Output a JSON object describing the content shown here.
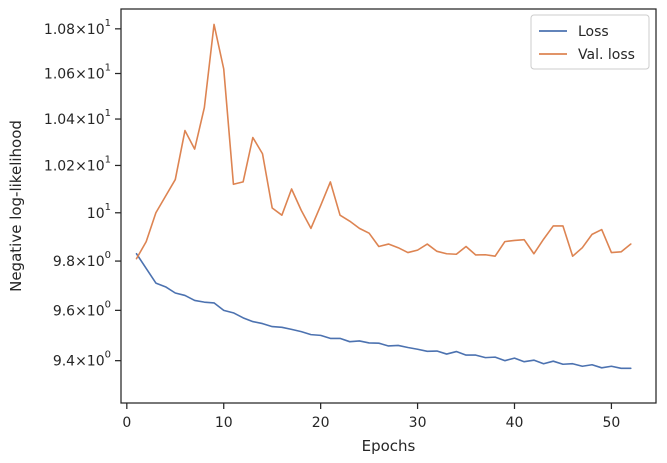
{
  "chart_data": {
    "type": "line",
    "xlabel": "Epochs",
    "ylabel": "Negative log-likelihood",
    "xlim": [
      -0.6,
      54.6
    ],
    "ylim": [
      9.235,
      10.89
    ],
    "yscale": "log",
    "grid": false,
    "legend_position": "top-right",
    "xticks": [
      {
        "value": 0,
        "label": "0"
      },
      {
        "value": 10,
        "label": "10"
      },
      {
        "value": 20,
        "label": "20"
      },
      {
        "value": 30,
        "label": "30"
      },
      {
        "value": 40,
        "label": "40"
      },
      {
        "value": 50,
        "label": "50"
      }
    ],
    "yticks": [
      {
        "value": 9.4,
        "mantissa": "9.4",
        "base": "10",
        "exp": "0"
      },
      {
        "value": 9.6,
        "mantissa": "9.6",
        "base": "10",
        "exp": "0"
      },
      {
        "value": 9.8,
        "mantissa": "9.8",
        "base": "10",
        "exp": "0"
      },
      {
        "value": 10.0,
        "mantissa": "",
        "base": "10",
        "exp": "1"
      },
      {
        "value": 10.2,
        "mantissa": "1.02",
        "base": "10",
        "exp": "1"
      },
      {
        "value": 10.4,
        "mantissa": "1.04",
        "base": "10",
        "exp": "1"
      },
      {
        "value": 10.6,
        "mantissa": "1.06",
        "base": "10",
        "exp": "1"
      },
      {
        "value": 10.8,
        "mantissa": "1.08",
        "base": "10",
        "exp": "1"
      }
    ],
    "x": [
      1,
      2,
      3,
      4,
      5,
      6,
      7,
      8,
      9,
      10,
      11,
      12,
      13,
      14,
      15,
      16,
      17,
      18,
      19,
      20,
      21,
      22,
      23,
      24,
      25,
      26,
      27,
      28,
      29,
      30,
      31,
      32,
      33,
      34,
      35,
      36,
      37,
      38,
      39,
      40,
      41,
      42,
      43,
      44,
      45,
      46,
      47,
      48,
      49,
      50,
      51,
      52
    ],
    "series": [
      {
        "name": "Loss",
        "color": "#4c72b0",
        "values": [
          9.83,
          9.77,
          9.71,
          9.695,
          9.67,
          9.66,
          9.64,
          9.633,
          9.63,
          9.6,
          9.59,
          9.57,
          9.555,
          9.547,
          9.535,
          9.532,
          9.524,
          9.515,
          9.503,
          9.5,
          9.488,
          9.488,
          9.475,
          9.478,
          9.47,
          9.469,
          9.458,
          9.46,
          9.452,
          9.445,
          9.437,
          9.438,
          9.426,
          9.436,
          9.422,
          9.422,
          9.412,
          9.414,
          9.4,
          9.41,
          9.396,
          9.402,
          9.388,
          9.398,
          9.386,
          9.388,
          9.378,
          9.384,
          9.372,
          9.378,
          9.37,
          9.37
        ]
      },
      {
        "name": "Val. loss",
        "color": "#dd8452",
        "values": [
          9.81,
          9.88,
          10.0,
          10.07,
          10.14,
          10.35,
          10.27,
          10.45,
          10.82,
          10.62,
          10.12,
          10.13,
          10.32,
          10.25,
          10.02,
          9.99,
          10.1,
          10.01,
          9.935,
          10.03,
          10.13,
          9.99,
          9.965,
          9.935,
          9.915,
          9.86,
          9.87,
          9.855,
          9.835,
          9.845,
          9.87,
          9.84,
          9.83,
          9.828,
          9.86,
          9.825,
          9.826,
          9.82,
          9.88,
          9.885,
          9.888,
          9.83,
          9.89,
          9.945,
          9.945,
          9.82,
          9.855,
          9.91,
          9.93,
          9.835,
          9.838,
          9.87
        ]
      }
    ]
  }
}
